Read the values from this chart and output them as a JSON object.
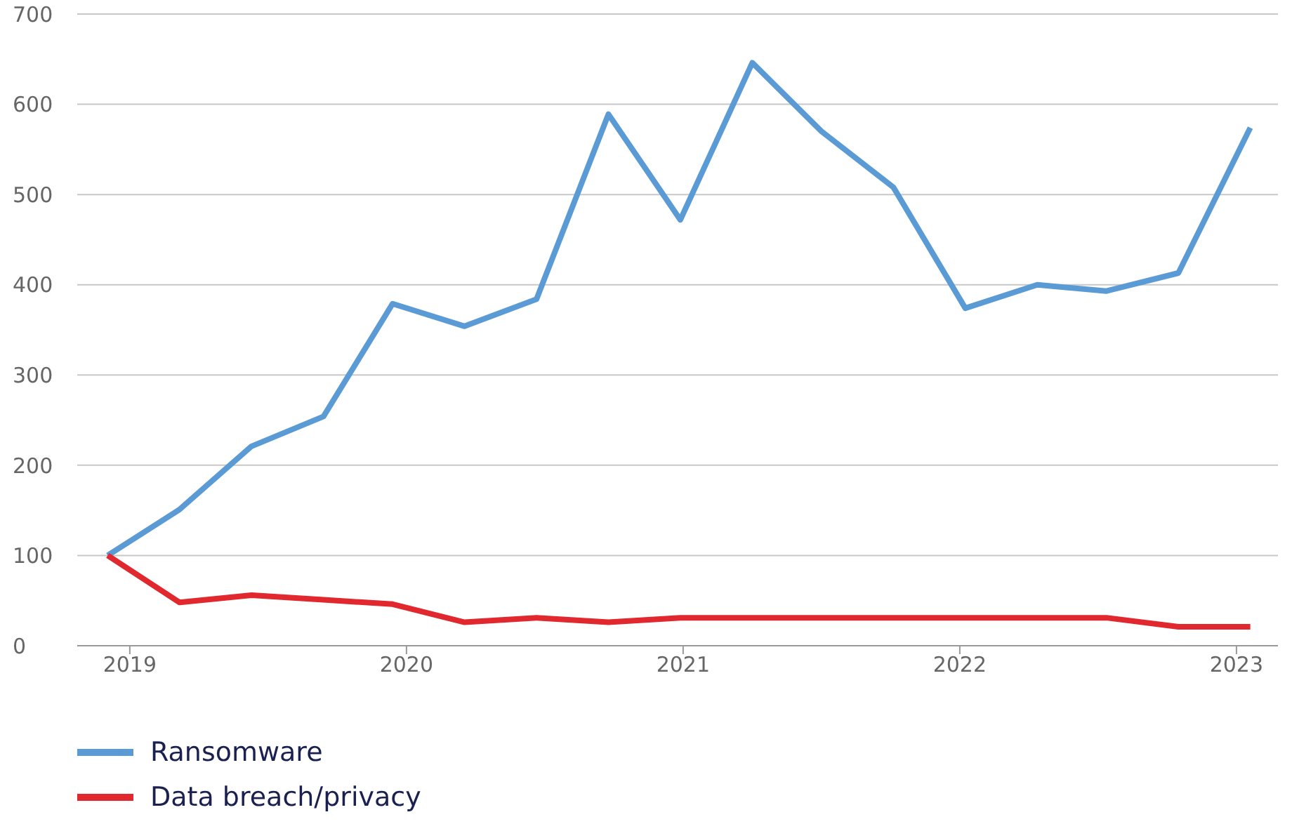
{
  "chart_data": {
    "type": "line",
    "x": [
      2018.92,
      2019.18,
      2019.44,
      2019.7,
      2019.95,
      2020.21,
      2020.47,
      2020.73,
      2020.99,
      2021.25,
      2021.5,
      2021.76,
      2022.02,
      2022.28,
      2022.53,
      2022.79,
      2023.05
    ],
    "series": [
      {
        "name": "Ransomware",
        "color": "#5b9bd5",
        "values": [
          100,
          151,
          221,
          254,
          379,
          354,
          384,
          589,
          472,
          646,
          570,
          508,
          374,
          400,
          393,
          413,
          574
        ]
      },
      {
        "name": "Data breach/privacy",
        "color": "#e0282e",
        "values": [
          100,
          48,
          56,
          51,
          46,
          26,
          31,
          26,
          31,
          31,
          31,
          31,
          31,
          31,
          31,
          21,
          21
        ]
      }
    ],
    "xlim": [
      2018.81,
      2023.15
    ],
    "xticks": [
      2019,
      2020,
      2021,
      2022,
      2023
    ],
    "ylim": [
      0,
      700
    ],
    "yticks": [
      0,
      100,
      200,
      300,
      400,
      500,
      600,
      700
    ],
    "grid": "y",
    "legend": "bottom left",
    "marker": "none",
    "line_style": "solid"
  }
}
